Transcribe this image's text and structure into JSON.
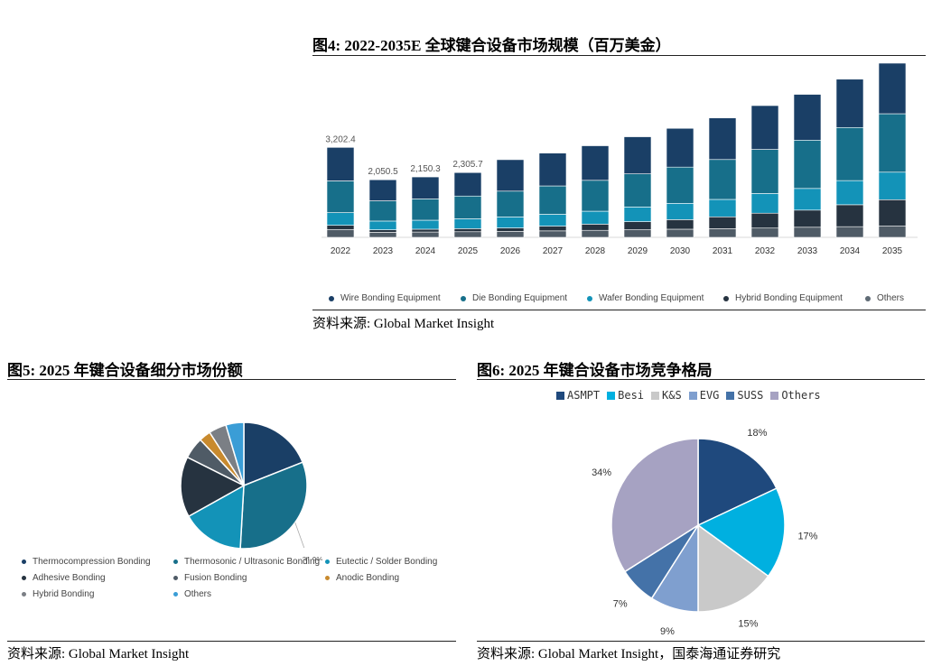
{
  "fig4": {
    "title": "图4:  2022-2035E 全球键合设备市场规模（百万美金）",
    "source": "资料来源:  Global Market Insight"
  },
  "fig5": {
    "title": "图5:  2025 年键合设备细分市场份额",
    "source": "资料来源:  Global Market Insight"
  },
  "fig6": {
    "title": "图6:  2025 年键合设备市场竞争格局",
    "source": "资料来源:  Global Market Insight，国泰海通证券研究"
  },
  "chart_data": [
    {
      "id": "fig4",
      "type": "bar",
      "stacked": true,
      "categories": [
        "2022",
        "2023",
        "2024",
        "2025",
        "2026",
        "2027",
        "2028",
        "2029",
        "2030",
        "2031",
        "2032",
        "2033",
        "2034",
        "2035"
      ],
      "series": [
        {
          "name": "Others",
          "color": "#4f5b66",
          "values": [
            280,
            180,
            190,
            200,
            215,
            230,
            250,
            270,
            290,
            310,
            330,
            360,
            380,
            400
          ]
        },
        {
          "name": "Hybrid Bonding Equipment",
          "color": "#263340",
          "values": [
            150,
            90,
            100,
            110,
            120,
            170,
            220,
            290,
            340,
            420,
            530,
            610,
            780,
            940
          ]
        },
        {
          "name": "Wafer Bonding Equipment",
          "color": "#1393b8",
          "values": [
            450,
            310,
            320,
            350,
            390,
            420,
            460,
            520,
            580,
            620,
            700,
            770,
            860,
            980
          ]
        },
        {
          "name": "Die Bonding Equipment",
          "color": "#176f8a",
          "values": [
            1130,
            720,
            760,
            810,
            920,
            1010,
            1100,
            1180,
            1290,
            1420,
            1570,
            1720,
            1890,
            2080
          ]
        },
        {
          "name": "Wire Bonding Equipment",
          "color": "#1a3f66",
          "values": [
            1192.4,
            750.5,
            780.3,
            835.7,
            1120,
            1170,
            1230,
            1320,
            1380,
            1480,
            1560,
            1630,
            1720,
            1800
          ]
        }
      ],
      "data_labels": [
        "3,202.4",
        "2,050.5",
        "2,150.3",
        "2,305.7"
      ],
      "legend_order": [
        "Wire Bonding Equipment",
        "Die Bonding Equipment",
        "Wafer Bonding Equipment",
        "Hybrid Bonding Equipment",
        "Others"
      ],
      "legend_colors": [
        "#1a3f66",
        "#176f8a",
        "#1393b8",
        "#263340",
        "#5f6b75"
      ],
      "ylim": [
        0,
        6200
      ],
      "legend_position": "bottom"
    },
    {
      "id": "fig5",
      "type": "pie",
      "slices": [
        {
          "name": "Thermocompression Bonding",
          "value": 19.0,
          "color": "#1a3f66"
        },
        {
          "name": "Thermosonic / Ultrasonic Bonding",
          "value": 31.9,
          "color": "#176f8a"
        },
        {
          "name": "Eutectic / Solder Bonding",
          "value": 16.0,
          "color": "#1393b8"
        },
        {
          "name": "Adhesive Bonding",
          "value": 15.5,
          "color": "#263340"
        },
        {
          "name": "Fusion Bonding",
          "value": 5.5,
          "color": "#4f5b66"
        },
        {
          "name": "Anodic Bonding",
          "value": 3.0,
          "color": "#c88a2e"
        },
        {
          "name": "Hybrid Bonding",
          "value": 4.5,
          "color": "#7b7f85"
        },
        {
          "name": "Others",
          "value": 4.6,
          "color": "#3a9dd6"
        }
      ],
      "slice_label": "31.9%",
      "legend_position": "bottom"
    },
    {
      "id": "fig6",
      "type": "pie",
      "slices": [
        {
          "name": "ASMPT",
          "value": 18,
          "label": "18%",
          "color": "#1f497d"
        },
        {
          "name": "Besi",
          "value": 17,
          "label": "17%",
          "color": "#00b0e0"
        },
        {
          "name": "K&S",
          "value": 15,
          "label": "15%",
          "color": "#c9c9c9"
        },
        {
          "name": "EVG",
          "value": 9,
          "label": "9%",
          "color": "#7f9fcf"
        },
        {
          "name": "SUSS",
          "value": 7,
          "label": "7%",
          "color": "#4472a8"
        },
        {
          "name": "Others",
          "value": 34,
          "label": "34%",
          "color": "#a6a2c2"
        }
      ],
      "legend_position": "top"
    }
  ]
}
